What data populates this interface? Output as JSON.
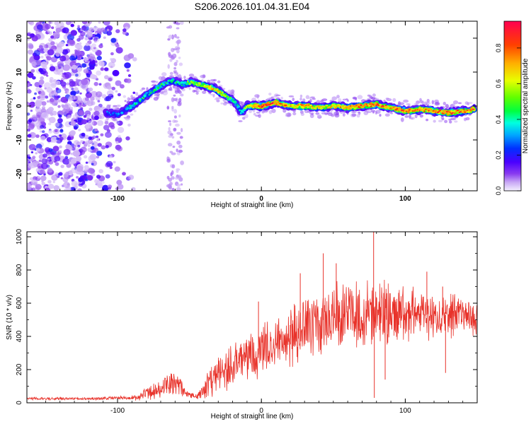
{
  "page": {
    "title": "S206.2026.101.04.31.E04"
  },
  "colors": {
    "snr_line": "#e8322a",
    "axis": "#000000",
    "colormap": [
      "#f8f8ff",
      "#d9c6f7",
      "#9a5cf0",
      "#6a10e6",
      "#4a00ff",
      "#0044ff",
      "#00c8ff",
      "#00ff66",
      "#c8ff00",
      "#ffcc00",
      "#ff5a00",
      "#ff0040"
    ]
  },
  "chart_data": [
    {
      "type": "heatmap",
      "title": "S206.2026.101.04.31.E04",
      "xlabel": "Height of straight line (km)",
      "ylabel": "Frequency (Hz)",
      "xlim": [
        -163,
        150
      ],
      "ylim": [
        -25,
        25
      ],
      "xticks": [
        -100,
        0,
        100
      ],
      "yticks": [
        20,
        10,
        0,
        -10,
        -20
      ],
      "colorbar": {
        "label": "Normalized spectral amplitude",
        "range": [
          0.0,
          0.95
        ],
        "ticks": [
          0.0,
          0.2,
          0.4,
          0.6,
          0.8
        ]
      },
      "ridge": {
        "x": [
          -108,
          -100,
          -90,
          -80,
          -70,
          -62,
          -55,
          -48,
          -40,
          -32,
          -25,
          -18,
          -14,
          -10,
          -5,
          0,
          10,
          20,
          30,
          40,
          50,
          60,
          70,
          80,
          90,
          100,
          110,
          120,
          130,
          140,
          148
        ],
        "freq": [
          -2,
          -2.5,
          0,
          3,
          6,
          7.5,
          6.5,
          7,
          6,
          5,
          3,
          1,
          -2,
          0,
          0,
          0,
          1,
          0,
          0,
          -0.5,
          0,
          -0.5,
          0,
          0.5,
          -0.5,
          -1.5,
          -1,
          -1.5,
          -2,
          -1.5,
          -1
        ],
        "amplitude": [
          0.3,
          0.35,
          0.45,
          0.5,
          0.55,
          0.45,
          0.5,
          0.6,
          0.7,
          0.75,
          0.6,
          0.5,
          0.4,
          0.7,
          0.85,
          0.95,
          0.9,
          0.75,
          0.85,
          0.7,
          0.75,
          0.8,
          0.85,
          0.9,
          0.85,
          0.9,
          0.8,
          0.85,
          0.9,
          0.85,
          0.9
        ]
      },
      "noise_region_x": [
        -163,
        -85
      ],
      "noise_column_x": [
        -65,
        -55
      ]
    },
    {
      "type": "line",
      "xlabel": "Height of straight line (km)",
      "ylabel": "SNR (10 * v/v)",
      "xlim": [
        -163,
        150
      ],
      "ylim": [
        0,
        1030
      ],
      "xticks": [
        -100,
        0,
        100
      ],
      "yticks": [
        0,
        200,
        400,
        600,
        800,
        1000
      ],
      "series": [
        {
          "name": "SNR",
          "envelope": {
            "x": [
              -163,
              -120,
              -90,
              -80,
              -70,
              -63,
              -58,
              -52,
              -45,
              -40,
              -35,
              -30,
              -20,
              -10,
              -5,
              0,
              10,
              20,
              30,
              40,
              50,
              60,
              70,
              80,
              90,
              100,
              110,
              120,
              130,
              140,
              150
            ],
            "base": [
              25,
              25,
              30,
              50,
              90,
              120,
              110,
              50,
              40,
              60,
              130,
              180,
              230,
              270,
              280,
              300,
              340,
              400,
              470,
              490,
              520,
              520,
              530,
              520,
              530,
              520,
              540,
              520,
              530,
              520,
              520
            ],
            "amp": [
              8,
              8,
              12,
              40,
              60,
              70,
              60,
              20,
              15,
              60,
              90,
              110,
              130,
              130,
              140,
              150,
              150,
              170,
              180,
              190,
              190,
              180,
              190,
              200,
              180,
              160,
              150,
              140,
              130,
              120,
              110
            ]
          },
          "peaks": [
            {
              "x": 78,
              "value": 1030
            },
            {
              "x": 78.5,
              "value": 30
            },
            {
              "x": 43,
              "value": 900
            },
            {
              "x": 52,
              "value": 840
            },
            {
              "x": 115,
              "value": 790
            },
            {
              "x": 126,
              "value": 700
            },
            {
              "x": 27,
              "value": 780
            },
            {
              "x": 86,
              "value": 140
            },
            {
              "x": 128,
              "value": 180
            },
            {
              "x": -2,
              "value": 610
            }
          ]
        }
      ]
    }
  ]
}
